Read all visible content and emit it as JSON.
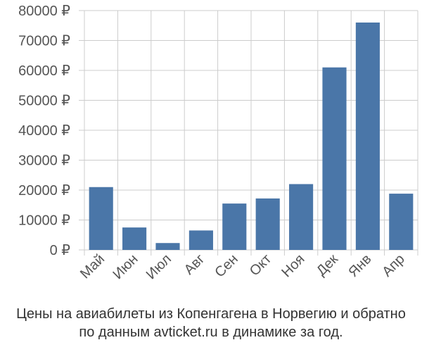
{
  "chart_data": {
    "type": "bar",
    "categories": [
      "Май",
      "Июн",
      "Июл",
      "Авг",
      "Сен",
      "Окт",
      "Ноя",
      "Дек",
      "Янв",
      "Апр"
    ],
    "values": [
      21000,
      7500,
      2300,
      6500,
      15500,
      17200,
      22000,
      61000,
      76000,
      18800
    ],
    "y_ticks": [
      "0 ₽",
      "10000 ₽",
      "20000 ₽",
      "30000 ₽",
      "40000 ₽",
      "50000 ₽",
      "60000 ₽",
      "70000 ₽",
      "80000 ₽"
    ],
    "ylim": [
      0,
      80000
    ],
    "grid": true,
    "bar_color": "#4a76a8",
    "grid_color": "#cccccc"
  },
  "caption": {
    "line1": "Цены на авиабилеты из Копенгагена в Норвегию и обратно",
    "line2": "по данным avticket.ru в динамике за год."
  }
}
